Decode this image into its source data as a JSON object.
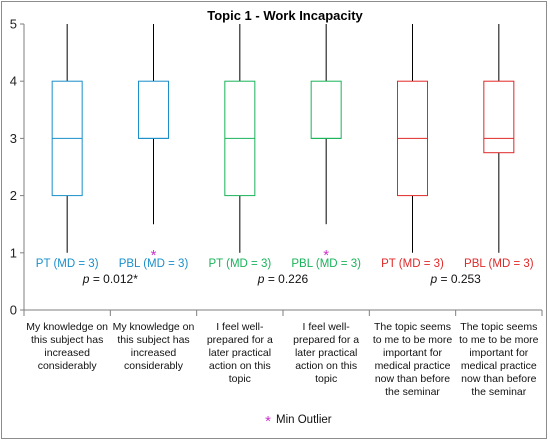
{
  "chart_data": {
    "type": "boxplot",
    "title": "Topic 1 - Work Incapacity",
    "ylim": [
      0,
      5
    ],
    "yticks": [
      "0",
      "1",
      "2",
      "3",
      "4",
      "5"
    ],
    "colors": {
      "group1": "#1a8fc9",
      "group2": "#19b35a",
      "group3": "#e02828",
      "outlier": "#cc33cc"
    },
    "categories": [
      [
        "My knowledge on",
        "this subject has",
        "increased",
        "considerably"
      ],
      [
        "My knowledge on",
        "this subject has",
        "increased",
        "considerably"
      ],
      [
        "I feel well-",
        "prepared for a",
        "later practical",
        "action on this",
        "topic"
      ],
      [
        "I feel well-",
        "prepared for a",
        "later practical",
        "action on this",
        "topic"
      ],
      [
        "The topic seems",
        "to me to be more",
        "important for",
        "medical practice",
        "now than before",
        "the seminar"
      ],
      [
        "The topic seems",
        "to me to be more",
        "important for",
        "medical practice",
        "now than before",
        "the seminar"
      ]
    ],
    "boxes": [
      {
        "label": "PT (MD = 3)",
        "min": 1,
        "q1": 2,
        "median": 3,
        "q3": 4,
        "max": 5,
        "color": "#1a8fc9",
        "outliers": []
      },
      {
        "label": "PBL (MD = 3)",
        "min": 1.5,
        "q1": 3,
        "median": 3,
        "q3": 4,
        "max": 5,
        "color": "#1a8fc9",
        "outliers": [
          1
        ]
      },
      {
        "label": "PT (MD = 3)",
        "min": 1,
        "q1": 2,
        "median": 3,
        "q3": 4,
        "max": 5,
        "color": "#19b35a",
        "outliers": []
      },
      {
        "label": "PBL (MD = 3)",
        "min": 1.5,
        "q1": 3,
        "median": 3,
        "q3": 4,
        "max": 5,
        "color": "#19b35a",
        "outliers": [
          1
        ]
      },
      {
        "label": "PT (MD = 3)",
        "min": 1,
        "q1": 2,
        "median": 3,
        "q3": 4,
        "max": 5,
        "color": "#e02828",
        "outliers": []
      },
      {
        "label": "PBL (MD = 3)",
        "min": 1,
        "q1": 2.75,
        "median": 3,
        "q3": 4,
        "max": 5,
        "color": "#e02828",
        "outliers": []
      }
    ],
    "pvalues": [
      {
        "prefix": "p",
        "value": " = 0.012*"
      },
      {
        "prefix": "p",
        "value": " = 0.226"
      },
      {
        "prefix": "p",
        "value": " = 0.253"
      }
    ],
    "legend": {
      "marker": "*",
      "label": "Min Outlier"
    }
  }
}
